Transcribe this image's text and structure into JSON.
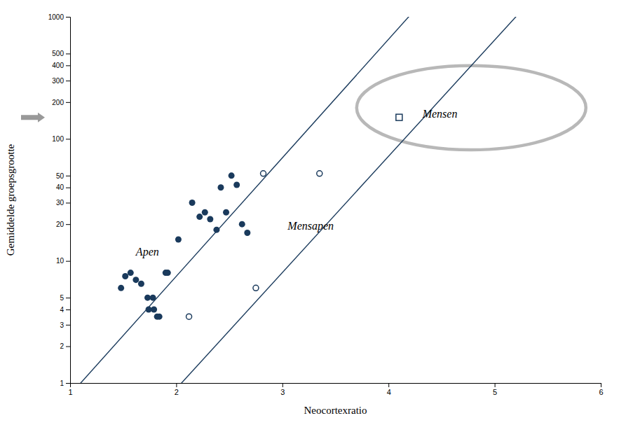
{
  "chart_data": {
    "type": "scatter",
    "xlabel": "Neocortexratio",
    "ylabel": "Gemiddelde groepsgrootte",
    "log": "y",
    "xlim": [
      1,
      6
    ],
    "ylim": [
      1,
      1000
    ],
    "xticks": [
      1,
      2,
      3,
      4,
      5,
      6
    ],
    "yticks": [
      1,
      2,
      3,
      4,
      5,
      10,
      20,
      30,
      40,
      50,
      100,
      200,
      300,
      400,
      500,
      1000
    ],
    "series": [
      {
        "type": "scatter",
        "marker": "filled-circle",
        "color": "#1a3a5c",
        "x": [
          1.48,
          1.52,
          1.57,
          1.62,
          1.67,
          1.73,
          1.74,
          1.78,
          1.79,
          1.82,
          1.84,
          1.9,
          1.92,
          2.02,
          2.15,
          2.22,
          2.27,
          2.32,
          2.38,
          2.42,
          2.47,
          2.52,
          2.57,
          2.62,
          2.67
        ],
        "values": [
          6,
          7.5,
          8,
          7,
          6.5,
          5,
          4,
          5,
          4,
          3.5,
          3.5,
          8,
          8,
          15,
          30,
          23,
          25,
          22,
          18,
          40,
          25,
          50,
          42,
          20,
          17
        ]
      },
      {
        "type": "scatter",
        "marker": "open-circle",
        "color": "#1a3a5c",
        "x": [
          2.12,
          2.75,
          2.82,
          3.35
        ],
        "values": [
          3.5,
          6,
          52,
          52
        ]
      },
      {
        "type": "scatter",
        "marker": "open-square",
        "color": "#1a3a5c",
        "x": [
          4.1
        ],
        "values": [
          150
        ]
      },
      {
        "type": "line",
        "line_style": "solid",
        "color": "#1a3a5c",
        "x": [
          1.1,
          2.85
        ],
        "values": [
          1.0,
          50
        ]
      },
      {
        "type": "line",
        "line_style": "solid",
        "color": "#1a3a5c",
        "x": [
          2.05,
          5.2
        ],
        "values": [
          1.0,
          1000
        ]
      }
    ],
    "annotations": [
      {
        "text": "Apen",
        "x": 1.62,
        "y": 11
      },
      {
        "text": "Mensapen",
        "x": 3.05,
        "y": 18
      },
      {
        "text": "Mensen",
        "x": 4.32,
        "y": 150
      }
    ],
    "ellipse": {
      "cx": 4.78,
      "cy_log": 2.255,
      "rx": 1.08,
      "ry_log": 0.345,
      "color": "#b8b8b8"
    },
    "arrow": {
      "y": 150,
      "color": "#999999"
    }
  }
}
